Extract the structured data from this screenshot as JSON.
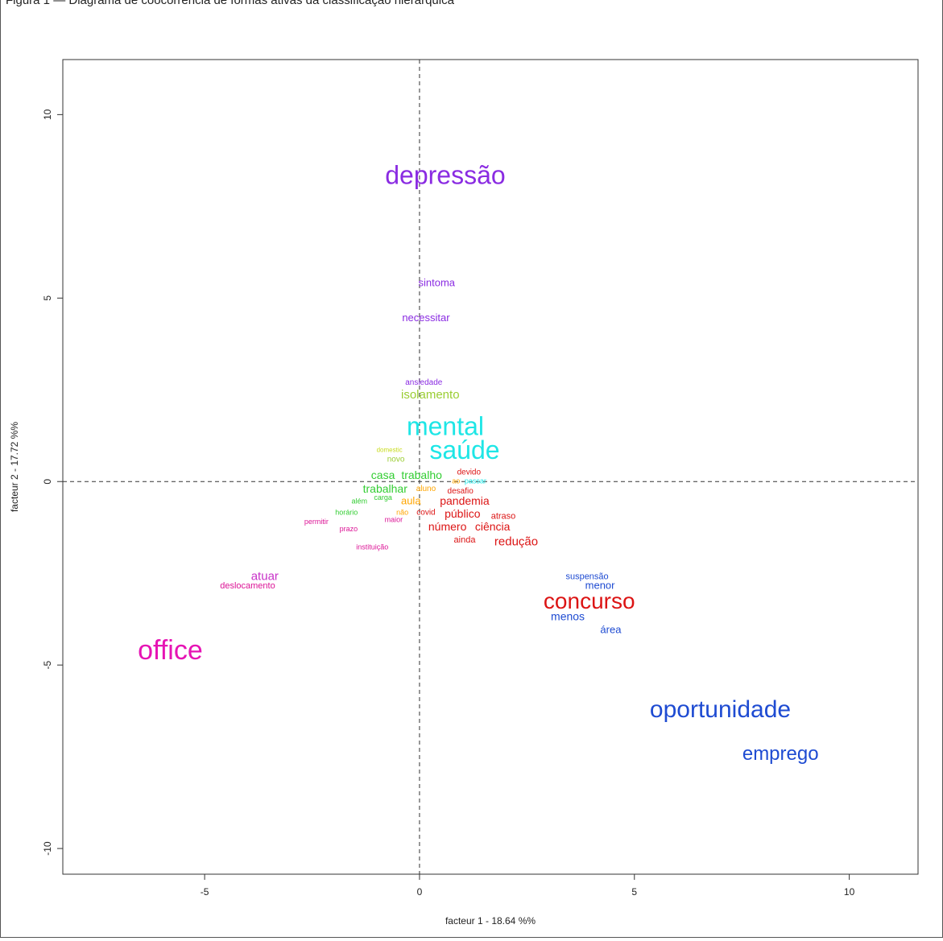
{
  "caption": "Figura 1 — Diagrama de coocorrência de formas ativas da classificação hierárquica",
  "chart_data": {
    "type": "scatter",
    "title": "",
    "xlabel": "facteur  1  - 18.64 %%",
    "ylabel": "facteur  2  - 17.72 %%",
    "xlim": [
      -8.3,
      11.6
    ],
    "ylim": [
      -10.7,
      11.5
    ],
    "xticks": [
      -5,
      0,
      5,
      10
    ],
    "yticks": [
      -10,
      -5,
      0,
      5,
      10
    ],
    "reference_lines": {
      "x": 0,
      "y": 0,
      "style": "dashed"
    },
    "grid": false,
    "words": [
      {
        "label": "depressão",
        "x": 0.6,
        "y": 8.3,
        "color": "#8a2be2",
        "size": 32
      },
      {
        "label": "sintoma",
        "x": 0.4,
        "y": 5.4,
        "color": "#8a2be2",
        "size": 13
      },
      {
        "label": "necessitar",
        "x": 0.15,
        "y": 4.45,
        "color": "#8a2be2",
        "size": 13
      },
      {
        "label": "ansiedade",
        "x": 0.1,
        "y": 2.7,
        "color": "#8a2be2",
        "size": 10
      },
      {
        "label": "isolamento",
        "x": 0.25,
        "y": 2.35,
        "color": "#9acd32",
        "size": 15
      },
      {
        "label": "mental",
        "x": 0.6,
        "y": 1.45,
        "color": "#1ee6e6",
        "size": 32
      },
      {
        "label": "saúde",
        "x": 1.05,
        "y": 0.8,
        "color": "#1ee6e6",
        "size": 32
      },
      {
        "label": "domestic",
        "x": -0.7,
        "y": 0.85,
        "color": "#c8dc1e",
        "size": 8
      },
      {
        "label": "novo",
        "x": -0.55,
        "y": 0.6,
        "color": "#9acd32",
        "size": 10
      },
      {
        "label": "casa",
        "x": -0.85,
        "y": 0.15,
        "color": "#32cd32",
        "size": 14
      },
      {
        "label": "trabalho",
        "x": 0.05,
        "y": 0.15,
        "color": "#32cd32",
        "size": 14
      },
      {
        "label": "devido",
        "x": 1.15,
        "y": 0.25,
        "color": "#dc1414",
        "size": 10
      },
      {
        "label": "ao",
        "x": 0.85,
        "y": 0.0,
        "color": "#ffa500",
        "size": 9
      },
      {
        "label": "passar",
        "x": 1.3,
        "y": 0.0,
        "color": "#1ee6e6",
        "size": 9
      },
      {
        "label": "trabalhar",
        "x": -0.8,
        "y": -0.22,
        "color": "#32cd32",
        "size": 14
      },
      {
        "label": "aluno",
        "x": 0.15,
        "y": -0.2,
        "color": "#ffa500",
        "size": 10
      },
      {
        "label": "carga",
        "x": -0.85,
        "y": -0.45,
        "color": "#32cd32",
        "size": 9
      },
      {
        "label": "além",
        "x": -1.4,
        "y": -0.55,
        "color": "#32cd32",
        "size": 9
      },
      {
        "label": "aula",
        "x": -0.2,
        "y": -0.55,
        "color": "#ffa500",
        "size": 13
      },
      {
        "label": "desafio",
        "x": 0.95,
        "y": -0.27,
        "color": "#dc1414",
        "size": 10
      },
      {
        "label": "pandemia",
        "x": 1.05,
        "y": -0.55,
        "color": "#dc1414",
        "size": 14
      },
      {
        "label": "horário",
        "x": -1.7,
        "y": -0.85,
        "color": "#32cd32",
        "size": 9
      },
      {
        "label": "não",
        "x": -0.4,
        "y": -0.85,
        "color": "#ffa500",
        "size": 9
      },
      {
        "label": "covid",
        "x": 0.15,
        "y": -0.85,
        "color": "#dc1414",
        "size": 10
      },
      {
        "label": "público",
        "x": 1.0,
        "y": -0.9,
        "color": "#dc1414",
        "size": 14
      },
      {
        "label": "atraso",
        "x": 1.95,
        "y": -0.95,
        "color": "#dc1414",
        "size": 11
      },
      {
        "label": "permitir",
        "x": -2.4,
        "y": -1.1,
        "color": "#dc1496",
        "size": 9
      },
      {
        "label": "maior",
        "x": -0.6,
        "y": -1.05,
        "color": "#dc1496",
        "size": 9
      },
      {
        "label": "número",
        "x": 0.65,
        "y": -1.25,
        "color": "#dc1414",
        "size": 14
      },
      {
        "label": "ciência",
        "x": 1.7,
        "y": -1.25,
        "color": "#dc1414",
        "size": 14
      },
      {
        "label": "prazo",
        "x": -1.65,
        "y": -1.3,
        "color": "#dc1496",
        "size": 9
      },
      {
        "label": "ainda",
        "x": 1.05,
        "y": -1.6,
        "color": "#dc1414",
        "size": 11
      },
      {
        "label": "redução",
        "x": 2.25,
        "y": -1.65,
        "color": "#dc1414",
        "size": 15
      },
      {
        "label": "instituição",
        "x": -1.1,
        "y": -1.8,
        "color": "#dc1496",
        "size": 9
      },
      {
        "label": "atuar",
        "x": -3.6,
        "y": -2.6,
        "color": "#c832c8",
        "size": 15
      },
      {
        "label": "deslocamento",
        "x": -4.0,
        "y": -2.85,
        "color": "#dc1496",
        "size": 11
      },
      {
        "label": "suspensão",
        "x": 3.9,
        "y": -2.6,
        "color": "#1e4bd2",
        "size": 11
      },
      {
        "label": "menor",
        "x": 4.2,
        "y": -2.85,
        "color": "#1e4bd2",
        "size": 13
      },
      {
        "label": "concurso",
        "x": 3.95,
        "y": -3.3,
        "color": "#dc1414",
        "size": 28
      },
      {
        "label": "menos",
        "x": 3.45,
        "y": -3.7,
        "color": "#1e4bd2",
        "size": 14
      },
      {
        "label": "área",
        "x": 4.45,
        "y": -4.05,
        "color": "#1e4bd2",
        "size": 13
      },
      {
        "label": "office",
        "x": -5.8,
        "y": -4.65,
        "color": "#e614b4",
        "size": 34
      },
      {
        "label": "oportunidade",
        "x": 7.0,
        "y": -6.25,
        "color": "#1e4bd2",
        "size": 30
      },
      {
        "label": "emprego",
        "x": 8.4,
        "y": -7.45,
        "color": "#1e4bd2",
        "size": 24
      }
    ]
  }
}
